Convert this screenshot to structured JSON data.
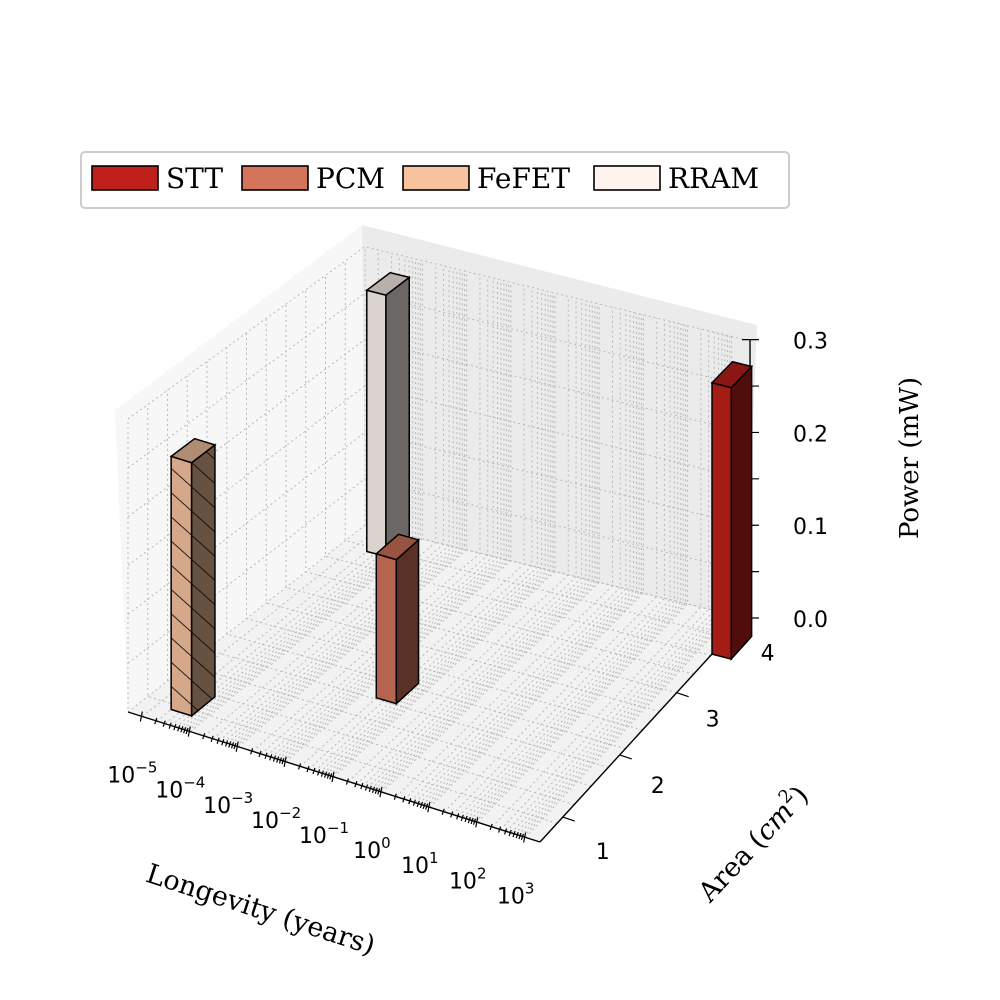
{
  "chart_data": {
    "type": "bar3d",
    "xlabel": "Longevity (years)",
    "ylabel": "Area (cm²)",
    "zlabel": "Power (mW)",
    "x_scale": "log",
    "x_ticks": [
      {
        "base": "10",
        "exp": "−5"
      },
      {
        "base": "10",
        "exp": "−4"
      },
      {
        "base": "10",
        "exp": "−3"
      },
      {
        "base": "10",
        "exp": "−2"
      },
      {
        "base": "10",
        "exp": "−1"
      },
      {
        "base": "10",
        "exp": "0"
      },
      {
        "base": "10",
        "exp": "1"
      },
      {
        "base": "10",
        "exp": "2"
      },
      {
        "base": "10",
        "exp": "3"
      }
    ],
    "y_ticks": [
      "1",
      "2",
      "3",
      "4"
    ],
    "z_ticks": [
      "0.0",
      "0.1",
      "0.2",
      "0.3"
    ],
    "zlim": [
      0,
      0.3
    ],
    "grid": true,
    "legend_position": "top",
    "series": [
      {
        "name": "STT",
        "color": "#c0201a",
        "hatch": false,
        "longevity": 1000,
        "area": 3.8,
        "power": 0.29
      },
      {
        "name": "PCM",
        "color": "#d4745a",
        "hatch": false,
        "longevity": 0.01,
        "area": 2.0,
        "power": 0.15
      },
      {
        "name": "FeFET",
        "color": "#f6c39e",
        "hatch": true,
        "longevity": 1e-05,
        "area": 1.0,
        "power": 0.26
      },
      {
        "name": "RRAM",
        "color": "#fff5ee",
        "hatch": false,
        "longevity": 1e-05,
        "area": 4.0,
        "power": 0.28
      }
    ]
  }
}
